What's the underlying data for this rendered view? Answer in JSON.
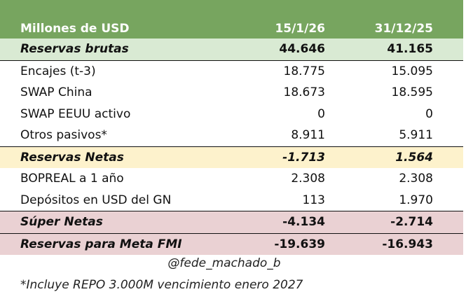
{
  "header": {
    "label": "Millones de USD",
    "col1": "15/1/26",
    "col2": "31/12/25"
  },
  "rows": [
    {
      "label": "Reservas brutas",
      "v1": "44.646",
      "v2": "41.165"
    },
    {
      "label": "Encajes (t-3)",
      "v1": "18.775",
      "v2": "15.095"
    },
    {
      "label": "SWAP China",
      "v1": "18.673",
      "v2": "18.595"
    },
    {
      "label": "SWAP EEUU activo",
      "v1": "0",
      "v2": "0"
    },
    {
      "label": "Otros pasivos*",
      "v1": "8.911",
      "v2": "5.911"
    },
    {
      "label": "Reservas Netas",
      "v1": "-1.713",
      "v2": "1.564"
    },
    {
      "label": "BOPREAL a 1 año",
      "v1": "2.308",
      "v2": "2.308"
    },
    {
      "label": "Depósitos en USD del GN",
      "v1": "113",
      "v2": "1.970"
    },
    {
      "label": "Súper Netas",
      "v1": "-4.134",
      "v2": "-2.714"
    },
    {
      "label": "Reservas para Meta FMI",
      "v1": "-19.639",
      "v2": "-16.943"
    }
  ],
  "credit": "@fede_machado_b",
  "footnote": "*Incluye REPO 3.000M vencimiento enero 2027",
  "colors": {
    "header": "#77a55f",
    "brutas": "#d9ead3",
    "netas": "#fdf2cc",
    "super": "#ead1d3"
  }
}
